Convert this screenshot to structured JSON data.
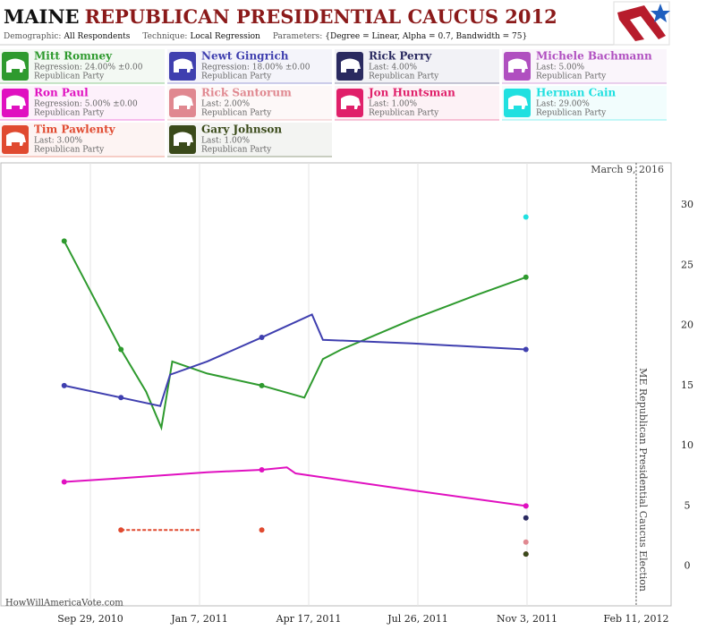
{
  "header": {
    "title_state": "MAINE",
    "title": "REPUBLICAN PRESIDENTIAL CAUCUS 2012",
    "meta": [
      {
        "label": "Demographic:",
        "value": "All Respondents"
      },
      {
        "label": "Technique:",
        "value": "Local Regression"
      },
      {
        "label": "Parameters:",
        "value": "{Degree = Linear, Alpha = 0.7, Bandwidth = 75}"
      }
    ]
  },
  "chart_data": {
    "type": "line",
    "date_note": "March 9, 2016",
    "source": "HowWillAmericaVote.com",
    "event": {
      "x": "2012-02-11",
      "label": "ME Republican Presidential Caucus Election"
    },
    "xlim": [
      "2010-07-09",
      "2012-03-14"
    ],
    "xticks": [
      {
        "value": "2010-09-29",
        "label": "Sep 29, 2010"
      },
      {
        "value": "2011-01-07",
        "label": "Jan 7, 2011"
      },
      {
        "value": "2011-04-17",
        "label": "Apr 17, 2011"
      },
      {
        "value": "2011-07-26",
        "label": "Jul 26, 2011"
      },
      {
        "value": "2011-11-03",
        "label": "Nov 3, 2011"
      },
      {
        "value": "2012-02-11",
        "label": "Feb 11, 2012"
      }
    ],
    "ylim": [
      -3.3,
      33.5
    ],
    "yticks": [
      0,
      5,
      10,
      15,
      20,
      25,
      30
    ],
    "grid": true,
    "series": [
      {
        "name": "Mitt Romney",
        "detail": "Regression: 24.00% ±0.00",
        "party": "Republican Party",
        "color": "#2e9a2e",
        "x": [
          "2010-09-05",
          "2010-10-27",
          "2011-03-05",
          "2011-11-02"
        ],
        "values": [
          27,
          18,
          15,
          24
        ],
        "trend_x": [
          "2010-09-05",
          "2010-10-27",
          "2010-11-19",
          "2010-12-03",
          "2010-12-13",
          "2011-01-14",
          "2011-03-05",
          "2011-04-13",
          "2011-04-30",
          "2011-05-17",
          "2011-07-21",
          "2011-09-17",
          "2011-11-02"
        ],
        "trend_values": [
          27,
          18,
          14.5,
          11.5,
          17,
          16,
          15,
          14,
          17.2,
          18,
          20.5,
          22.5,
          24
        ]
      },
      {
        "name": "Newt Gingrich",
        "detail": "Regression: 18.00% ±0.00",
        "party": "Republican Party",
        "color": "#3f3faf",
        "x": [
          "2010-09-05",
          "2010-10-27",
          "2011-03-05",
          "2011-11-02"
        ],
        "values": [
          15,
          14,
          19,
          18
        ],
        "trend_x": [
          "2010-09-05",
          "2010-10-27",
          "2010-12-02",
          "2010-12-11",
          "2011-01-14",
          "2011-03-05",
          "2011-04-20",
          "2011-04-30",
          "2011-07-21",
          "2011-11-02"
        ],
        "trend_values": [
          15,
          14,
          13.3,
          15.9,
          17,
          19,
          20.9,
          18.8,
          18.5,
          18
        ]
      },
      {
        "name": "Rick Perry",
        "detail": "Last: 4.00%",
        "party": "Republican Party",
        "color": "#2a2a60",
        "x": [
          "2011-11-02"
        ],
        "values": [
          4
        ]
      },
      {
        "name": "Michele Bachmann",
        "detail": "Last: 5.00%",
        "party": "Republican Party",
        "color": "#b04fc0",
        "x": [
          "2011-11-02"
        ],
        "values": [
          5
        ]
      },
      {
        "name": "Ron Paul",
        "detail": "Regression: 5.00% ±0.00",
        "party": "Republican Party",
        "color": "#e010c0",
        "x": [
          "2010-09-05",
          "2011-03-05",
          "2011-11-02"
        ],
        "values": [
          7,
          8,
          5
        ],
        "trend_x": [
          "2010-09-05",
          "2010-10-27",
          "2011-01-14",
          "2011-03-05",
          "2011-03-28",
          "2011-04-05",
          "2011-07-21",
          "2011-11-02"
        ],
        "trend_values": [
          7,
          7.3,
          7.8,
          8,
          8.2,
          7.7,
          6.3,
          5
        ]
      },
      {
        "name": "Rick Santorum",
        "detail": "Last: 2.00%",
        "party": "Republican Party",
        "color": "#e08890",
        "x": [
          "2011-11-02"
        ],
        "values": [
          2
        ]
      },
      {
        "name": "Jon Huntsman",
        "detail": "Last: 1.00%",
        "party": "Republican Party",
        "color": "#e0206a",
        "x": [
          "2011-11-02"
        ],
        "values": [
          1
        ]
      },
      {
        "name": "Herman Cain",
        "detail": "Last: 29.00%",
        "party": "Republican Party",
        "color": "#20e0e0",
        "x": [
          "2011-11-02"
        ],
        "values": [
          29
        ]
      },
      {
        "name": "Tim Pawlenty",
        "detail": "Last: 3.00%",
        "party": "Republican Party",
        "color": "#e04a30",
        "x": [
          "2010-10-27",
          "2011-03-05"
        ],
        "values": [
          3,
          3
        ],
        "trend_x": [
          "2010-10-27",
          "2011-01-07"
        ],
        "trend_values": [
          3,
          3
        ],
        "trend_style": "dashed"
      },
      {
        "name": "Gary Johnson",
        "detail": "Last: 1.00%",
        "party": "Republican Party",
        "color": "#3a4a1a",
        "x": [
          "2011-11-02"
        ],
        "values": [
          1
        ]
      }
    ]
  }
}
